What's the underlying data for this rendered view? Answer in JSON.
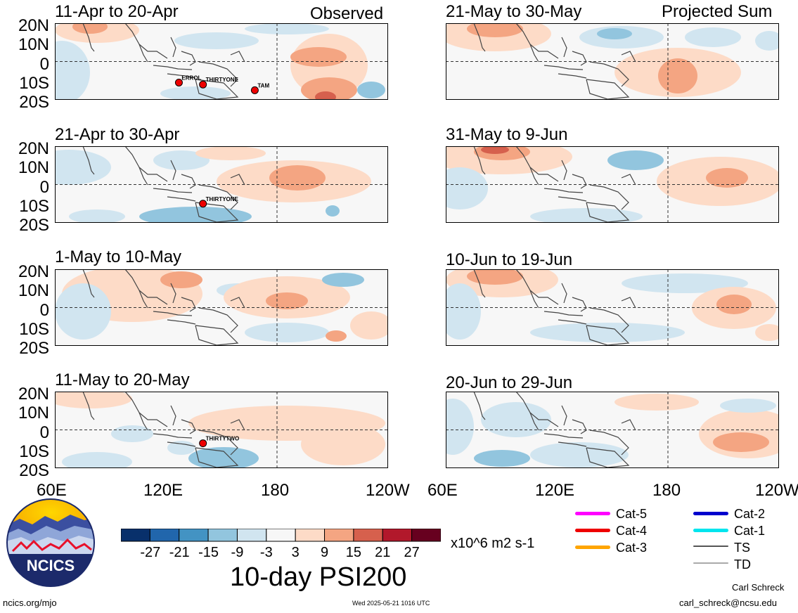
{
  "header": {
    "left_tag": "Observed",
    "right_tag": "Projected Sum"
  },
  "panels": [
    {
      "title": "11-Apr to 20-Apr",
      "column": "observed",
      "storms": [
        {
          "name": "ERROL",
          "lon": 127,
          "lat": -11
        },
        {
          "name": "THIRTYONE",
          "lon": 140,
          "lat": -12
        },
        {
          "name": "TAM",
          "lon": 168,
          "lat": -15
        }
      ]
    },
    {
      "title": "21-Apr to 30-Apr",
      "column": "observed",
      "storms": [
        {
          "name": "THIRTYONE",
          "lon": 140,
          "lat": -10
        }
      ]
    },
    {
      "title": "1-May to 10-May",
      "column": "observed",
      "storms": []
    },
    {
      "title": "11-May to 20-May",
      "column": "observed",
      "storms": [
        {
          "name": "THIRTYTWO",
          "lon": 140,
          "lat": -7
        }
      ]
    },
    {
      "title": "21-May to 30-May",
      "column": "projected",
      "storms": []
    },
    {
      "title": "31-May to 9-Jun",
      "column": "projected",
      "storms": []
    },
    {
      "title": "10-Jun to 19-Jun",
      "column": "projected",
      "storms": []
    },
    {
      "title": "20-Jun to 29-Jun",
      "column": "projected",
      "storms": []
    }
  ],
  "axes": {
    "lat_labels": [
      "20N",
      "10N",
      "0",
      "10S",
      "20S"
    ],
    "lon_labels": [
      "60E",
      "120E",
      "180",
      "120W"
    ],
    "lon_range": [
      60,
      240
    ],
    "lat_range": [
      -20,
      20
    ]
  },
  "colorbar": {
    "ticks": [
      "-27",
      "-21",
      "-15",
      "-9",
      "-3",
      "3",
      "9",
      "15",
      "21",
      "27"
    ],
    "colors": [
      "#08306b",
      "#2166ac",
      "#4393c3",
      "#92c5de",
      "#d1e5f0",
      "#f7f7f7",
      "#fddbc7",
      "#f4a582",
      "#d6604d",
      "#b2182b",
      "#67001f"
    ],
    "units": "x10^6 m2 s-1"
  },
  "title": "10-day PSI200",
  "logo": {
    "text": "NCICS"
  },
  "track_legend": [
    {
      "label": "Cat-5",
      "color": "#ff00ff"
    },
    {
      "label": "Cat-4",
      "color": "#ee0000"
    },
    {
      "label": "Cat-3",
      "color": "#ffa500"
    },
    {
      "label": "Cat-2",
      "color": "#0000cd"
    },
    {
      "label": "Cat-1",
      "color": "#00e5ee"
    },
    {
      "label": "TS",
      "color": "#555555"
    },
    {
      "label": "TD",
      "color": "#aaaaaa"
    }
  ],
  "footer": {
    "left_url": "ncics.org/mjo",
    "timestamp": "Wed 2025-05-21 1016 UTC",
    "author": "Carl Schreck",
    "email": "carl_schreck@ncsu.edu"
  }
}
